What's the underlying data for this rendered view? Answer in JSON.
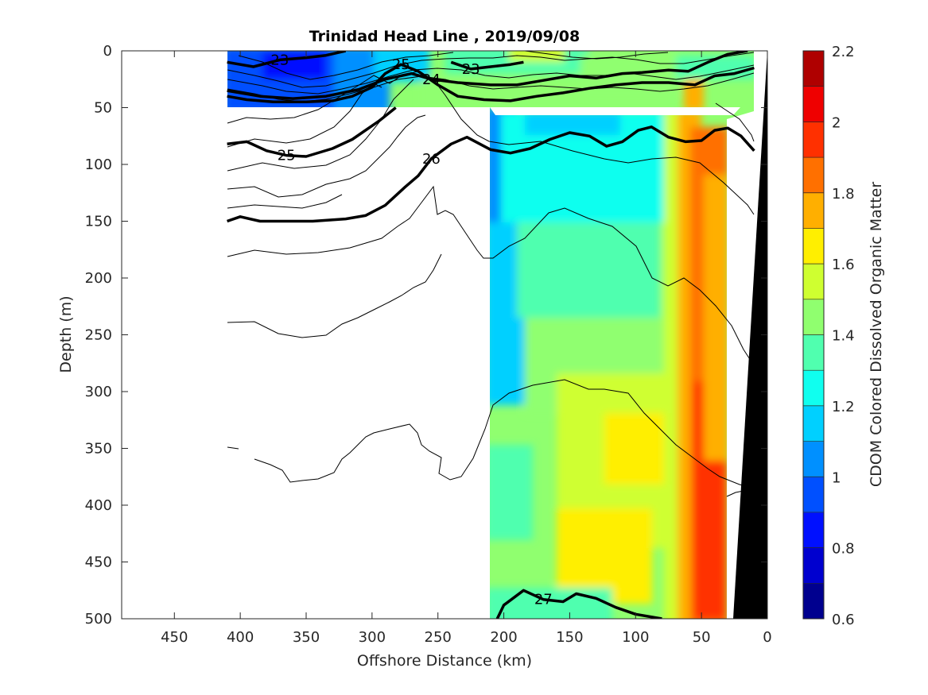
{
  "chart_data": {
    "type": "contour",
    "title": "Trinidad Head Line , 2019/09/08",
    "xlabel": "Offshore Distance (km)",
    "ylabel": "Depth (m)",
    "xlim": [
      490,
      0
    ],
    "ylim": [
      0,
      500
    ],
    "x_reversed": true,
    "y_reversed": true,
    "xticks": [
      450,
      400,
      350,
      300,
      250,
      200,
      150,
      100,
      50,
      0
    ],
    "yticks": [
      0,
      50,
      100,
      150,
      200,
      250,
      300,
      350,
      400,
      450,
      500
    ],
    "colorbar": {
      "label": "CDOM Colored Dissolved Organic Matter",
      "range": [
        0.6,
        2.2
      ],
      "ticks": [
        "0.6",
        "0.8",
        "1",
        "1.2",
        "1.4",
        "1.6",
        "1.8",
        "2",
        "2.2"
      ],
      "levels": 16,
      "colors": [
        "#00008f",
        "#0000cf",
        "#0010ff",
        "#0050ff",
        "#0090ff",
        "#00d0ff",
        "#10ffef",
        "#50ffaf",
        "#90ff6f",
        "#cfff30",
        "#ffef00",
        "#ffaf00",
        "#ff7000",
        "#ff3000",
        "#ef0000",
        "#af0000"
      ]
    },
    "density_contours": [
      {
        "label": "23",
        "points": [
          [
            410,
            10
          ],
          [
            390,
            14
          ],
          [
            370,
            8
          ],
          [
            350,
            6
          ],
          [
            335,
            4
          ],
          [
            320,
            0
          ]
        ]
      },
      {
        "label": "23",
        "points": [
          [
            240,
            10
          ],
          [
            225,
            16
          ],
          [
            210,
            14
          ],
          [
            195,
            12
          ],
          [
            185,
            10
          ]
        ]
      },
      {
        "label": "24",
        "points": [
          [
            410,
            35
          ],
          [
            385,
            40
          ],
          [
            360,
            42
          ],
          [
            335,
            40
          ],
          [
            310,
            34
          ],
          [
            290,
            25
          ],
          [
            270,
            20
          ],
          [
            255,
            25
          ],
          [
            235,
            28
          ],
          [
            210,
            30
          ],
          [
            190,
            30
          ],
          [
            170,
            26
          ],
          [
            150,
            22
          ],
          [
            130,
            24
          ],
          [
            110,
            20
          ],
          [
            95,
            19
          ],
          [
            75,
            17
          ],
          [
            60,
            18
          ],
          [
            45,
            10
          ],
          [
            30,
            3
          ],
          [
            15,
            0
          ]
        ]
      },
      {
        "label": "25",
        "points": [
          [
            410,
            40
          ],
          [
            395,
            43
          ],
          [
            375,
            45
          ],
          [
            350,
            45
          ],
          [
            330,
            44
          ],
          [
            315,
            40
          ],
          [
            300,
            32
          ],
          [
            290,
            20
          ],
          [
            278,
            12
          ],
          [
            265,
            18
          ],
          [
            250,
            30
          ],
          [
            235,
            40
          ],
          [
            215,
            43
          ],
          [
            195,
            44
          ],
          [
            175,
            40
          ],
          [
            155,
            37
          ],
          [
            135,
            33
          ],
          [
            115,
            30
          ],
          [
            95,
            28
          ],
          [
            75,
            28
          ],
          [
            55,
            30
          ],
          [
            40,
            22
          ],
          [
            25,
            20
          ],
          [
            10,
            15
          ]
        ]
      },
      {
        "label": "25",
        "points": [
          [
            410,
            82
          ],
          [
            395,
            80
          ],
          [
            380,
            88
          ],
          [
            365,
            92
          ],
          [
            350,
            93
          ],
          [
            330,
            86
          ],
          [
            315,
            78
          ],
          [
            295,
            62
          ],
          [
            282,
            50
          ]
        ]
      },
      {
        "label": "26",
        "points": [
          [
            410,
            150
          ],
          [
            400,
            146
          ],
          [
            385,
            150
          ],
          [
            365,
            150
          ],
          [
            345,
            150
          ],
          [
            320,
            148
          ],
          [
            305,
            145
          ],
          [
            290,
            136
          ],
          [
            275,
            120
          ],
          [
            265,
            110
          ],
          [
            255,
            95
          ],
          [
            240,
            82
          ],
          [
            228,
            76
          ],
          [
            210,
            87
          ],
          [
            195,
            90
          ],
          [
            180,
            86
          ],
          [
            165,
            78
          ],
          [
            150,
            72
          ],
          [
            135,
            75
          ],
          [
            122,
            84
          ],
          [
            110,
            80
          ],
          [
            98,
            70
          ],
          [
            88,
            67
          ],
          [
            75,
            76
          ],
          [
            62,
            80
          ],
          [
            50,
            79
          ],
          [
            40,
            70
          ],
          [
            30,
            68
          ],
          [
            20,
            75
          ],
          [
            10,
            88
          ]
        ]
      },
      {
        "label": "27",
        "points": [
          [
            205,
            500
          ],
          [
            200,
            488
          ],
          [
            185,
            475
          ],
          [
            170,
            483
          ],
          [
            155,
            485
          ],
          [
            145,
            478
          ],
          [
            130,
            482
          ],
          [
            115,
            490
          ],
          [
            100,
            496
          ],
          [
            80,
            500
          ]
        ]
      }
    ],
    "regions": [
      {
        "name": "surface-layer",
        "x_range": [
          410,
          10
        ],
        "depth_range": [
          0,
          50
        ]
      },
      {
        "name": "deep-section",
        "x_range": [
          210,
          30
        ],
        "depth_range": [
          50,
          500
        ]
      },
      {
        "name": "bathymetry",
        "x_range": [
          25,
          0
        ],
        "depth_range": [
          0,
          500
        ]
      }
    ]
  }
}
